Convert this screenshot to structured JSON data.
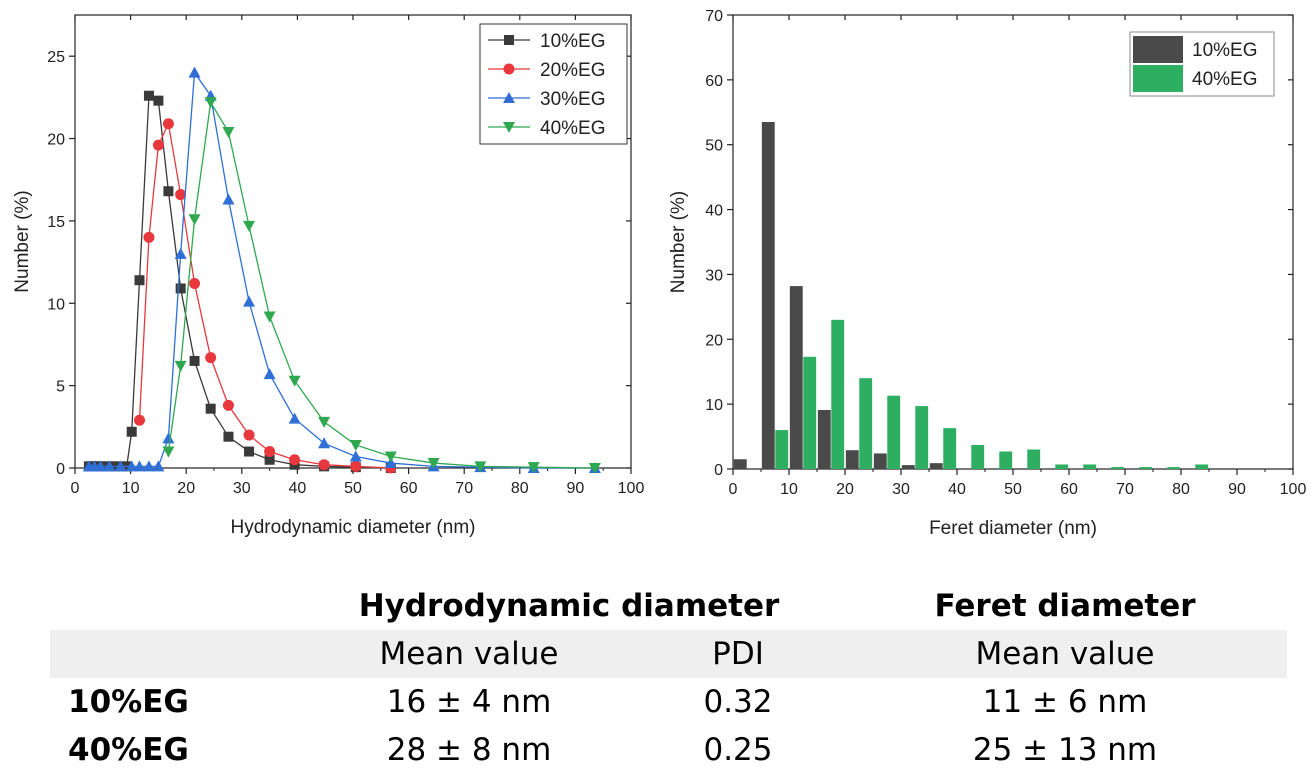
{
  "chart_data": [
    {
      "type": "line",
      "xlabel": "Hydrodynamic diameter (nm)",
      "ylabel": "Number (%)",
      "xlim": [
        0,
        100
      ],
      "ylim": [
        0,
        27.5
      ],
      "xticks": [
        "0",
        "10",
        "20",
        "30",
        "40",
        "50",
        "60",
        "70",
        "80",
        "90",
        "100"
      ],
      "yticks": [
        "0",
        "5",
        "10",
        "15",
        "20",
        "25"
      ],
      "legend_position": "top-right",
      "series": [
        {
          "name": "10%EG",
          "color": "#3a3a3a",
          "marker": "square",
          "x": [
            2.5,
            3,
            3.5,
            4,
            4.6,
            5.4,
            6.2,
            7.1,
            8.2,
            9.3,
            10.2,
            11.6,
            13.3,
            15.0,
            16.8,
            19.0,
            21.5,
            24.4,
            27.6,
            31.3,
            35.0,
            39.5,
            44.8,
            50.5,
            56.8
          ],
          "y": [
            0.1,
            0.1,
            0.1,
            0.1,
            0.1,
            0.1,
            0.1,
            0.1,
            0.1,
            0.1,
            2.2,
            11.4,
            22.6,
            22.3,
            16.8,
            10.9,
            6.5,
            3.6,
            1.9,
            1.0,
            0.5,
            0.2,
            0.1,
            0.05,
            0.0
          ]
        },
        {
          "name": "20%EG",
          "color": "#e8383d",
          "marker": "circle",
          "x": [
            11.6,
            13.3,
            15.0,
            16.8,
            19.0,
            21.5,
            24.4,
            27.6,
            31.3,
            35.0,
            39.5,
            44.8,
            50.5,
            56.8
          ],
          "y": [
            2.9,
            14.0,
            19.6,
            20.9,
            16.6,
            11.2,
            6.7,
            3.8,
            2.0,
            1.0,
            0.5,
            0.2,
            0.1,
            0.0
          ]
        },
        {
          "name": "30%EG",
          "color": "#2f6fd6",
          "marker": "triangle-up",
          "x": [
            2.5,
            3.5,
            4.6,
            6.2,
            8.2,
            10.2,
            11.6,
            13.3,
            15.0,
            16.8,
            19.0,
            21.5,
            24.4,
            27.6,
            31.3,
            35.0,
            39.5,
            44.8,
            50.5,
            56.8,
            64.5,
            72.9,
            82.5,
            93.5
          ],
          "y": [
            0.1,
            0.1,
            0.1,
            0.1,
            0.1,
            0.1,
            0.1,
            0.1,
            0.1,
            1.8,
            13.0,
            24.0,
            22.6,
            16.3,
            10.1,
            5.7,
            3.0,
            1.5,
            0.7,
            0.3,
            0.1,
            0.05,
            0.0,
            0.0
          ]
        },
        {
          "name": "40%EG",
          "color": "#2fa84f",
          "marker": "triangle-down",
          "x": [
            16.8,
            19.0,
            21.5,
            24.4,
            27.6,
            31.3,
            35.0,
            39.5,
            44.8,
            50.5,
            56.8,
            64.5,
            72.9,
            82.5,
            93.5
          ],
          "y": [
            1.0,
            6.2,
            15.1,
            22.2,
            20.4,
            14.7,
            9.2,
            5.3,
            2.8,
            1.4,
            0.7,
            0.3,
            0.1,
            0.05,
            0.0
          ]
        }
      ]
    },
    {
      "type": "bar",
      "xlabel": "Feret diameter (nm)",
      "ylabel": "Number (%)",
      "xlim": [
        0,
        100
      ],
      "ylim": [
        0,
        70
      ],
      "xticks": [
        "0",
        "10",
        "20",
        "30",
        "40",
        "50",
        "60",
        "70",
        "80",
        "90",
        "100"
      ],
      "yticks": [
        "0",
        "10",
        "20",
        "30",
        "40",
        "50",
        "60",
        "70"
      ],
      "legend_position": "top-right",
      "x": [
        2.5,
        7.5,
        12.5,
        17.5,
        22.5,
        27.5,
        32.5,
        37.5,
        42.5,
        47.5,
        52.5,
        57.5,
        62.5,
        67.5,
        72.5,
        77.5,
        82.5
      ],
      "series": [
        {
          "name": "10%EG",
          "color": "#4a4a4a",
          "values": [
            1.5,
            53.5,
            28.2,
            9.1,
            2.9,
            2.4,
            0.6,
            0.9,
            0.0,
            0.0,
            0.0,
            0.0,
            0.0,
            0.0,
            0.0,
            0.0,
            0.0
          ]
        },
        {
          "name": "40%EG",
          "color": "#2dae60",
          "values": [
            0.0,
            6.0,
            17.3,
            23.0,
            14.0,
            11.3,
            9.7,
            6.3,
            3.7,
            2.7,
            3.0,
            0.7,
            0.7,
            0.3,
            0.3,
            0.3,
            0.7
          ]
        }
      ]
    }
  ],
  "table": {
    "header_groups": [
      "Hydrodynamic diameter",
      "Feret diameter"
    ],
    "subheaders": [
      "Mean value",
      "PDI",
      "Mean value"
    ],
    "rows": [
      {
        "label": "10%EG",
        "hd_mean": "16 ± 4 nm",
        "pdi": "0.32",
        "feret_mean": "11 ± 6 nm"
      },
      {
        "label": "40%EG",
        "hd_mean": "28 ± 8 nm",
        "pdi": "0.25",
        "feret_mean": "25 ± 13 nm"
      }
    ]
  }
}
